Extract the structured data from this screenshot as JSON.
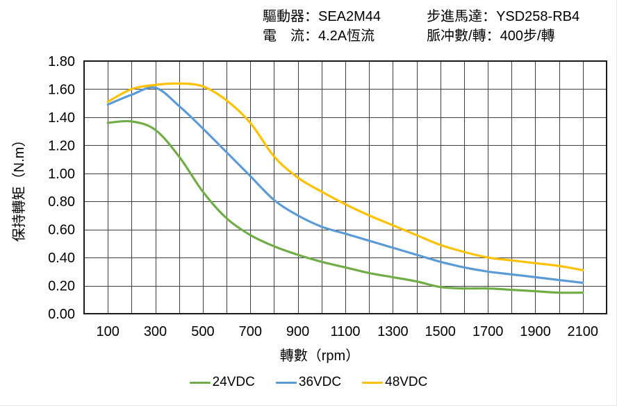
{
  "header": {
    "col1": [
      {
        "label": "驅動器：",
        "value": "SEA2M44"
      },
      {
        "label": "電　流：",
        "value": "4.2A恆流"
      }
    ],
    "col2": [
      {
        "label": "步進馬達：",
        "value": "YSD258-RB4"
      },
      {
        "label": "脈冲數/轉：",
        "value": "400步/轉"
      }
    ]
  },
  "chart_data": {
    "type": "line",
    "title": "",
    "xlabel": "轉數（rpm）",
    "ylabel": "保持轉矩（N.m）",
    "x": [
      100,
      200,
      300,
      400,
      500,
      600,
      700,
      800,
      900,
      1000,
      1100,
      1200,
      1300,
      1400,
      1500,
      1600,
      1700,
      1800,
      1900,
      2000,
      2100
    ],
    "series": [
      {
        "name": "24VDC",
        "color": "#70AD47",
        "values": [
          1.36,
          1.37,
          1.31,
          1.12,
          0.87,
          0.68,
          0.56,
          0.48,
          0.42,
          0.37,
          0.33,
          0.29,
          0.26,
          0.23,
          0.19,
          0.18,
          0.18,
          0.17,
          0.16,
          0.15,
          0.15
        ]
      },
      {
        "name": "36VDC",
        "color": "#5B9BD5",
        "values": [
          1.49,
          1.56,
          1.61,
          1.48,
          1.32,
          1.15,
          0.98,
          0.81,
          0.7,
          0.62,
          0.57,
          0.52,
          0.47,
          0.42,
          0.37,
          0.33,
          0.3,
          0.28,
          0.26,
          0.24,
          0.22
        ]
      },
      {
        "name": "48VDC",
        "color": "#FFC000",
        "values": [
          1.51,
          1.6,
          1.63,
          1.64,
          1.62,
          1.52,
          1.36,
          1.12,
          0.97,
          0.87,
          0.78,
          0.7,
          0.63,
          0.56,
          0.49,
          0.44,
          0.4,
          0.38,
          0.36,
          0.34,
          0.31
        ]
      }
    ],
    "xlim": [
      0,
      2200
    ],
    "ylim": [
      0,
      1.8
    ],
    "x_ticks": [
      100,
      300,
      500,
      700,
      900,
      1100,
      1300,
      1500,
      1700,
      1900,
      2100
    ],
    "y_ticks": [
      "0.00",
      "0.20",
      "0.40",
      "0.60",
      "0.80",
      "1.00",
      "1.20",
      "1.40",
      "1.60",
      "1.80"
    ],
    "x_grid_step": 100,
    "y_grid_step": 0.2,
    "grid": true,
    "legend_position": "bottom",
    "grid_color": "#3f3f3f",
    "border_color": "#1a1a1a",
    "text_color": "#000000"
  }
}
